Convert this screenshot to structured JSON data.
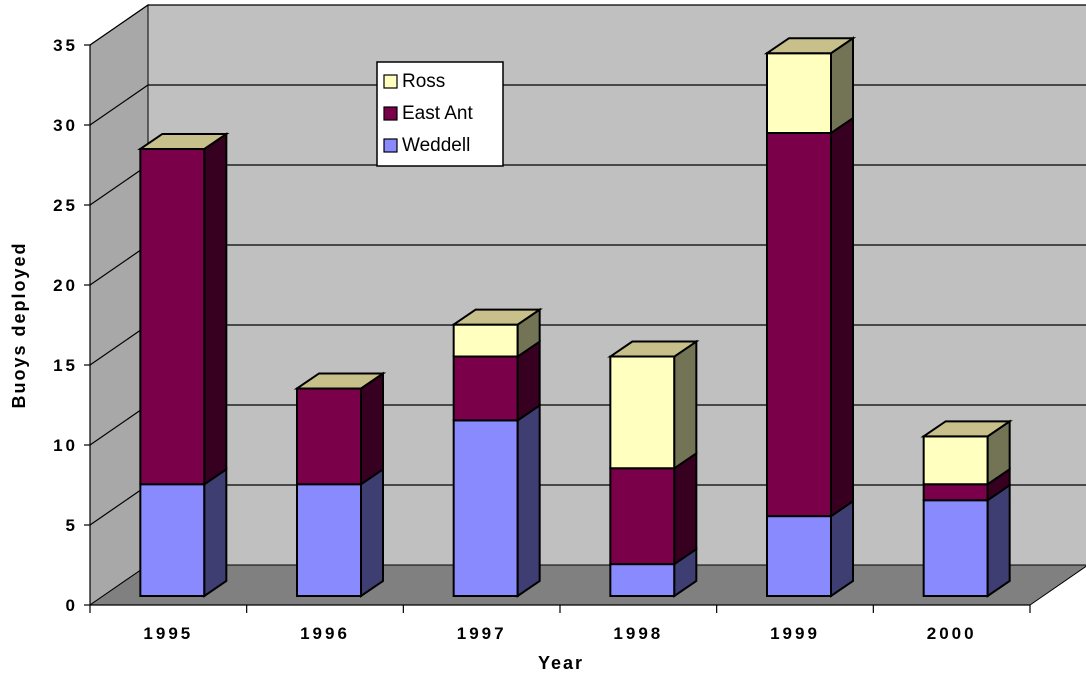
{
  "chart_data": {
    "type": "bar",
    "stacked": true,
    "three_d": true,
    "categories": [
      "1995",
      "1996",
      "1997",
      "1998",
      "1999",
      "2000"
    ],
    "series": [
      {
        "name": "Weddell",
        "values": [
          7,
          7,
          11,
          2,
          5,
          6
        ],
        "color": "#8a8aff"
      },
      {
        "name": "East  Ant",
        "values": [
          21,
          6,
          4,
          6,
          24,
          1
        ],
        "color": "#7a004a"
      },
      {
        "name": "Ross",
        "values": [
          0,
          0,
          2,
          7,
          5,
          3
        ],
        "color": "#ffffc0"
      }
    ],
    "xlabel": "Year",
    "ylabel": "Buoys deployed",
    "ylim": [
      0,
      35
    ],
    "yticks": [
      "0",
      "5",
      "10",
      "15",
      "20",
      "25",
      "30",
      "35"
    ],
    "grid": true,
    "legend_position": "top-left",
    "legend_order": [
      "Ross",
      "East  Ant",
      "Weddell"
    ],
    "wall_color": "#c0c0c0",
    "floor_color": "#808080"
  }
}
